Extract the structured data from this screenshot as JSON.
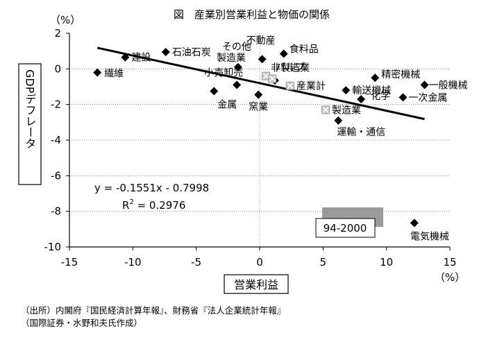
{
  "chart_data": {
    "type": "scatter",
    "title": "図　産業別営業利益と物価の関係",
    "xlabel": "営業利益",
    "ylabel": "GDPデフレータ",
    "x_unit": "（%）",
    "y_unit": "（%）",
    "xlim": [
      -15,
      15
    ],
    "ylim": [
      -10,
      2
    ],
    "xticks": [
      -15,
      -10,
      -5,
      0,
      5,
      10,
      15
    ],
    "yticks": [
      2,
      0,
      -2,
      -4,
      -6,
      -8,
      -10
    ],
    "grid": "horizontal dotted",
    "period_label": "94-2000",
    "trendline": {
      "equation": "y = -0.1551x - 0.7998",
      "r2_prefix": "R",
      "r2_sup": "2",
      "r2_value": " = 0.2976",
      "slope": -0.1551,
      "intercept": -0.7998,
      "x_range": [
        -12.8,
        13.0
      ]
    },
    "series": [
      {
        "marker": "diamond",
        "points": [
          {
            "label": "繊維",
            "x": -12.8,
            "y": -0.2
          },
          {
            "label": "建設",
            "x": -10.6,
            "y": 0.65
          },
          {
            "label": "石油石炭",
            "x": -7.4,
            "y": 0.95
          },
          {
            "label": "その他製造業",
            "x": -1.7,
            "y": 0.1
          },
          {
            "label": "不動産",
            "x": 0.2,
            "y": 0.55
          },
          {
            "label": "食料品",
            "x": 1.9,
            "y": 0.85
          },
          {
            "label": "小売卸売",
            "x": -1.8,
            "y": -0.9
          },
          {
            "label": "金属",
            "x": -3.6,
            "y": -1.25
          },
          {
            "label": "窯業",
            "x": -0.1,
            "y": -1.45
          },
          {
            "label": "",
            "x": 1.2,
            "y": -0.65
          },
          {
            "label": "運輸・通信",
            "x": 6.2,
            "y": -2.9
          },
          {
            "label": "輸送機械",
            "x": 6.8,
            "y": -1.2
          },
          {
            "label": "化学",
            "x": 8.0,
            "y": -1.7
          },
          {
            "label": "精密機械",
            "x": 9.1,
            "y": -0.5
          },
          {
            "label": "一次金属",
            "x": 11.3,
            "y": -1.6
          },
          {
            "label": "一般機械",
            "x": 13.0,
            "y": -0.9
          },
          {
            "label": "電気機械",
            "x": 12.2,
            "y": -8.65
          }
        ]
      },
      {
        "marker": "crossed-square",
        "points": [
          {
            "label": "非製造業",
            "x": 0.5,
            "y": -0.4
          },
          {
            "label": "パルプ",
            "x": 1.0,
            "y": -0.55
          },
          {
            "label": "産業計",
            "x": 2.4,
            "y": -0.95
          },
          {
            "label": "製造業",
            "x": 5.2,
            "y": -2.3
          }
        ]
      }
    ]
  },
  "source": {
    "line1": "（出所）内閣府『国民経済計算年報』、財務省『法人企業統計年報』",
    "line2": "（国際証券・水野和夫氏作成）"
  }
}
